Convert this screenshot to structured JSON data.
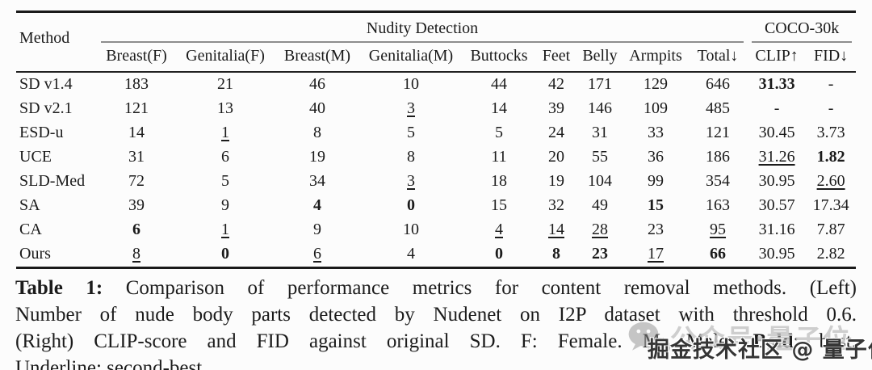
{
  "table": {
    "header": {
      "method_label": "Method",
      "group_nudity": "Nudity Detection",
      "group_coco": "COCO-30k",
      "columns": [
        "Breast(F)",
        "Genitalia(F)",
        "Breast(M)",
        "Genitalia(M)",
        "Buttocks",
        "Feet",
        "Belly",
        "Armpits",
        "Total↓",
        "CLIP↑",
        "FID↓"
      ]
    },
    "rows": [
      {
        "method": "SD v1.4",
        "cells": [
          {
            "v": "183"
          },
          {
            "v": "21"
          },
          {
            "v": "46"
          },
          {
            "v": "10"
          },
          {
            "v": "44"
          },
          {
            "v": "42"
          },
          {
            "v": "171"
          },
          {
            "v": "129"
          },
          {
            "v": "646"
          },
          {
            "v": "31.33",
            "s": "b"
          },
          {
            "v": "-"
          }
        ]
      },
      {
        "method": "SD v2.1",
        "cells": [
          {
            "v": "121"
          },
          {
            "v": "13"
          },
          {
            "v": "40"
          },
          {
            "v": "3",
            "s": "u"
          },
          {
            "v": "14"
          },
          {
            "v": "39"
          },
          {
            "v": "146"
          },
          {
            "v": "109"
          },
          {
            "v": "485"
          },
          {
            "v": "-"
          },
          {
            "v": "-"
          }
        ]
      },
      {
        "method": "ESD-u",
        "cells": [
          {
            "v": "14"
          },
          {
            "v": "1",
            "s": "u"
          },
          {
            "v": "8"
          },
          {
            "v": "5"
          },
          {
            "v": "5"
          },
          {
            "v": "24"
          },
          {
            "v": "31"
          },
          {
            "v": "33"
          },
          {
            "v": "121"
          },
          {
            "v": "30.45"
          },
          {
            "v": "3.73"
          }
        ]
      },
      {
        "method": "UCE",
        "cells": [
          {
            "v": "31"
          },
          {
            "v": "6"
          },
          {
            "v": "19"
          },
          {
            "v": "8"
          },
          {
            "v": "11"
          },
          {
            "v": "20"
          },
          {
            "v": "55"
          },
          {
            "v": "36"
          },
          {
            "v": "186"
          },
          {
            "v": "31.26",
            "s": "u"
          },
          {
            "v": "1.82",
            "s": "b"
          }
        ]
      },
      {
        "method": "SLD-Med",
        "cells": [
          {
            "v": "72"
          },
          {
            "v": "5"
          },
          {
            "v": "34"
          },
          {
            "v": "3",
            "s": "u"
          },
          {
            "v": "18"
          },
          {
            "v": "19"
          },
          {
            "v": "104"
          },
          {
            "v": "99"
          },
          {
            "v": "354"
          },
          {
            "v": "30.95"
          },
          {
            "v": "2.60",
            "s": "u"
          }
        ]
      },
      {
        "method": "SA",
        "cells": [
          {
            "v": "39"
          },
          {
            "v": "9"
          },
          {
            "v": "4",
            "s": "b"
          },
          {
            "v": "0",
            "s": "b"
          },
          {
            "v": "15"
          },
          {
            "v": "32"
          },
          {
            "v": "49"
          },
          {
            "v": "15",
            "s": "b"
          },
          {
            "v": "163"
          },
          {
            "v": "30.57"
          },
          {
            "v": "17.34"
          }
        ]
      },
      {
        "method": "CA",
        "cells": [
          {
            "v": "6",
            "s": "b"
          },
          {
            "v": "1",
            "s": "u"
          },
          {
            "v": "9"
          },
          {
            "v": "10"
          },
          {
            "v": "4",
            "s": "u"
          },
          {
            "v": "14",
            "s": "u"
          },
          {
            "v": "28",
            "s": "u"
          },
          {
            "v": "23"
          },
          {
            "v": "95",
            "s": "u"
          },
          {
            "v": "31.16"
          },
          {
            "v": "7.87"
          }
        ]
      },
      {
        "method": "Ours",
        "cells": [
          {
            "v": "8",
            "s": "u"
          },
          {
            "v": "0",
            "s": "b"
          },
          {
            "v": "6",
            "s": "u"
          },
          {
            "v": "4"
          },
          {
            "v": "0",
            "s": "b"
          },
          {
            "v": "8",
            "s": "b"
          },
          {
            "v": "23",
            "s": "b"
          },
          {
            "v": "17",
            "s": "u"
          },
          {
            "v": "66",
            "s": "b"
          },
          {
            "v": "30.95"
          },
          {
            "v": "2.82"
          }
        ]
      }
    ]
  },
  "caption": {
    "line1_bold": "Table 1:",
    "line1_rest": " Comparison of performance metrics for content removal methods. (Left)",
    "line2": "Number of nude body parts detected by Nudenet on I2P dataset with threshold 0.6.",
    "line3_pre": "(Right) CLIP-score and FID against original SD. F: Female. M: Male. ",
    "line3_bold": "Bold",
    "line3_post": ": best.",
    "line4_underline": "Underline",
    "line4_rest": ": second-best."
  },
  "watermark": {
    "overlay_text": "公众号·量子位",
    "main_text": "掘金技术社区 @ 量子位",
    "icon": "wechat-icon"
  },
  "colors": {
    "text": "#1b1b1b",
    "rule_dark": "#1a1a1a",
    "rule_gray": "#8d8d8d",
    "watermark_gray": "#c6c6c6",
    "watermark_dark": "#353535",
    "background": "#fcfcfc"
  }
}
